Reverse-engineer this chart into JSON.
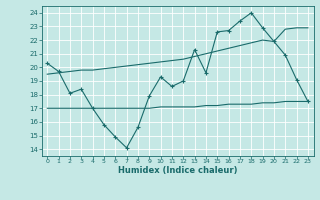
{
  "xlabel": "Humidex (Indice chaleur)",
  "xlim": [
    -0.5,
    23.5
  ],
  "ylim": [
    13.5,
    24.5
  ],
  "yticks": [
    14,
    15,
    16,
    17,
    18,
    19,
    20,
    21,
    22,
    23,
    24
  ],
  "xticks": [
    0,
    1,
    2,
    3,
    4,
    5,
    6,
    7,
    8,
    9,
    10,
    11,
    12,
    13,
    14,
    15,
    16,
    17,
    18,
    19,
    20,
    21,
    22,
    23
  ],
  "bg_color": "#c5e8e5",
  "line_color": "#1a6b6b",
  "grid_color": "#b0d8d5",
  "line1_x": [
    0,
    1,
    2,
    3,
    4,
    5,
    6,
    7,
    8,
    9,
    10,
    11,
    12,
    13,
    14,
    15,
    16,
    17,
    18,
    19,
    20,
    21,
    22,
    23
  ],
  "line1_y": [
    20.3,
    19.7,
    18.1,
    18.4,
    17.0,
    15.8,
    14.9,
    14.1,
    15.6,
    17.9,
    19.3,
    18.6,
    19.0,
    21.3,
    19.6,
    22.6,
    22.7,
    23.4,
    24.0,
    22.9,
    21.9,
    20.9,
    19.1,
    17.5
  ],
  "line2_x": [
    0,
    1,
    2,
    3,
    4,
    5,
    6,
    7,
    8,
    9,
    10,
    11,
    12,
    13,
    14,
    15,
    16,
    17,
    18,
    19,
    20,
    21,
    22,
    23
  ],
  "line2_y": [
    17.0,
    17.0,
    17.0,
    17.0,
    17.0,
    17.0,
    17.0,
    17.0,
    17.0,
    17.0,
    17.1,
    17.1,
    17.1,
    17.1,
    17.2,
    17.2,
    17.3,
    17.3,
    17.3,
    17.4,
    17.4,
    17.5,
    17.5,
    17.5
  ],
  "line3_x": [
    0,
    1,
    2,
    3,
    4,
    5,
    6,
    7,
    8,
    9,
    10,
    11,
    12,
    13,
    14,
    15,
    16,
    17,
    18,
    19,
    20,
    21,
    22,
    23
  ],
  "line3_y": [
    19.5,
    19.6,
    19.7,
    19.8,
    19.8,
    19.9,
    20.0,
    20.1,
    20.2,
    20.3,
    20.4,
    20.5,
    20.6,
    20.8,
    21.0,
    21.2,
    21.4,
    21.6,
    21.8,
    22.0,
    21.9,
    22.8,
    22.9,
    22.9
  ]
}
